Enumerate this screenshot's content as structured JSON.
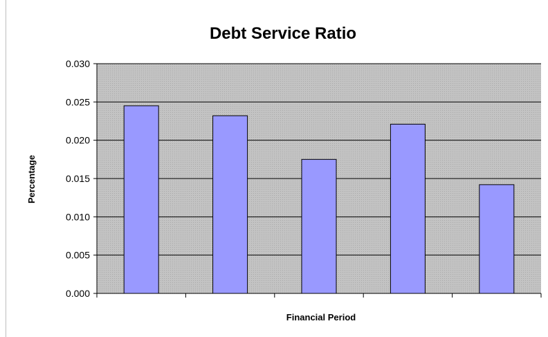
{
  "chart_data": {
    "type": "bar",
    "title": "Debt Service Ratio",
    "xlabel": "Financial Period",
    "ylabel": "Percentage",
    "categories": [
      "",
      "",
      "",
      "",
      ""
    ],
    "values": [
      0.0245,
      0.0232,
      0.0175,
      0.0221,
      0.0142
    ],
    "ylim": [
      0,
      0.03
    ],
    "yticks": [
      "0.000",
      "0.005",
      "0.010",
      "0.015",
      "0.020",
      "0.025",
      "0.030"
    ],
    "grid": true,
    "legend": "none",
    "colors": {
      "bar_fill": "#9999ff",
      "bar_stroke": "#000000",
      "plot_bg": "#c0c0c0",
      "gridline": "#000000"
    }
  }
}
